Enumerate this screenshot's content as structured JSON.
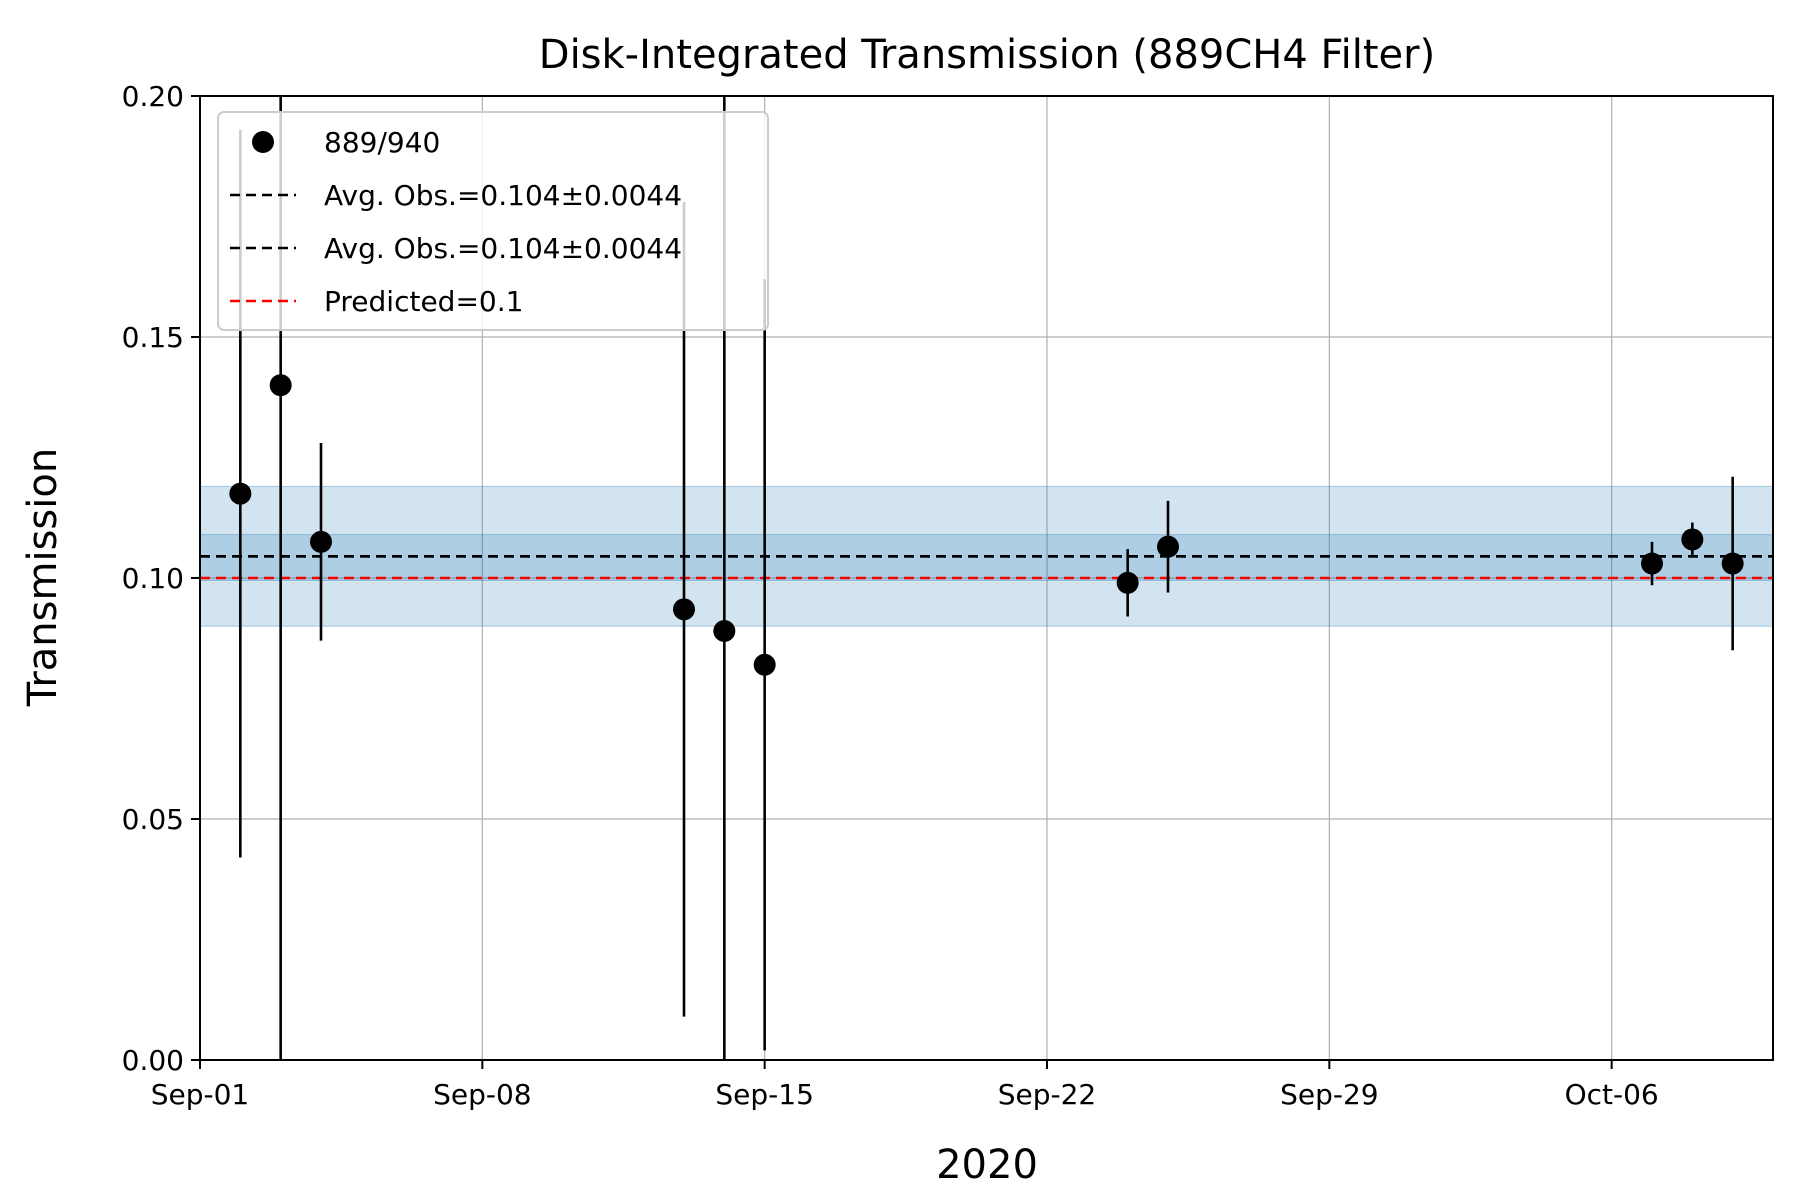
{
  "chart_data": {
    "type": "scatter",
    "title": "Disk-Integrated Transmission (889CH4 Filter)",
    "xlabel": "2020",
    "ylabel": "Transmission",
    "x_axis": {
      "type": "date",
      "range": [
        "2020-09-01",
        "2020-10-10"
      ],
      "tick_labels": [
        "Sep-01",
        "Sep-08",
        "Sep-15",
        "Sep-22",
        "Sep-29",
        "Oct-06"
      ],
      "tick_values": [
        "2020-09-01",
        "2020-09-08",
        "2020-09-15",
        "2020-09-22",
        "2020-09-29",
        "2020-10-06"
      ]
    },
    "ylim": [
      0.0,
      0.2
    ],
    "y_ticks": [
      0.0,
      0.05,
      0.1,
      0.15,
      0.2
    ],
    "y_tick_labels": [
      "0.00",
      "0.05",
      "0.10",
      "0.15",
      "0.20"
    ],
    "grid": true,
    "legend_position": "top-left",
    "series": [
      {
        "name": "889/940",
        "kind": "errorbar-points",
        "color": "#000000",
        "points": [
          {
            "x": "2020-09-02",
            "y": 0.1175,
            "yerr": 0.0755
          },
          {
            "x": "2020-09-03",
            "y": 0.14,
            "yerr": 0.14
          },
          {
            "x": "2020-09-04",
            "y": 0.1075,
            "yerr": 0.0205
          },
          {
            "x": "2020-09-13",
            "y": 0.0935,
            "yerr": 0.0845
          },
          {
            "x": "2020-09-14",
            "y": 0.089,
            "yerr": 0.111
          },
          {
            "x": "2020-09-15",
            "y": 0.082,
            "yerr": 0.08
          },
          {
            "x": "2020-09-24",
            "y": 0.099,
            "yerr": 0.007
          },
          {
            "x": "2020-09-25",
            "y": 0.1065,
            "yerr": 0.0095
          },
          {
            "x": "2020-10-07",
            "y": 0.103,
            "yerr": 0.0045
          },
          {
            "x": "2020-10-08",
            "y": 0.108,
            "yerr": 0.0035
          },
          {
            "x": "2020-10-09",
            "y": 0.103,
            "yerr": 0.018
          }
        ]
      },
      {
        "name": "Avg. Obs.=0.104±0.0044",
        "kind": "hline",
        "style": "dashed",
        "color": "#000000",
        "y": 0.1045,
        "band": [
          0.0995,
          0.109
        ],
        "band_color": "#1f77b4"
      },
      {
        "name": "Avg. Obs.=0.104±0.0044",
        "kind": "hline",
        "style": "dashed",
        "color": "#000000",
        "y": 0.1045,
        "band": [
          0.09,
          0.119
        ],
        "band_color": "#1f77b4"
      },
      {
        "name": "Predicted=0.1",
        "kind": "hline",
        "style": "dashed",
        "color": "#ff0000",
        "y": 0.1
      }
    ]
  }
}
